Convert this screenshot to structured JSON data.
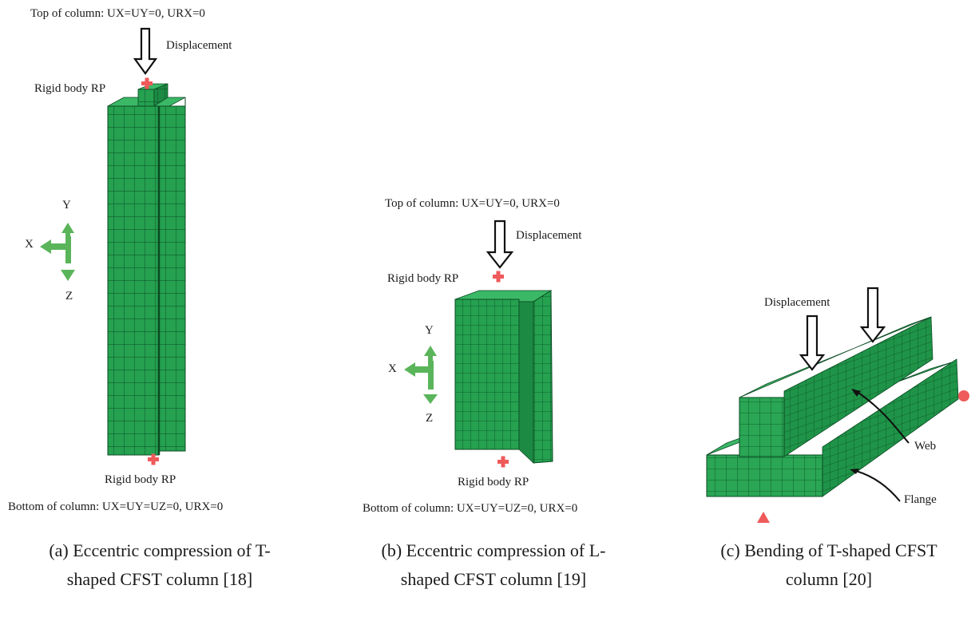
{
  "panel_a": {
    "top_bc": "Top of column: UX=UY=0, URX=0",
    "displacement": "Displacement",
    "rp_top": "Rigid body RP",
    "rp_bottom": "Rigid body RP",
    "bottom_bc": "Bottom of column: UX=UY=UZ=0, URX=0",
    "axes": {
      "x": "X",
      "y": "Y",
      "z": "Z"
    },
    "caption_line1": "(a) Eccentric compression of T-",
    "caption_line2": "shaped CFST column [18]"
  },
  "panel_b": {
    "top_bc": "Top of column: UX=UY=0, URX=0",
    "displacement": "Displacement",
    "rp_top": "Rigid body RP",
    "rp_bottom": "Rigid body RP",
    "bottom_bc": "Bottom of column: UX=UY=UZ=0, URX=0",
    "axes": {
      "x": "X",
      "y": "Y",
      "z": "Z"
    },
    "caption_line1": "(b) Eccentric compression of L-",
    "caption_line2": "shaped CFST column [19]"
  },
  "panel_c": {
    "displacement": "Displacement",
    "web": "Web",
    "flange": "Flange",
    "caption_line1": "(c) Bending of T-shaped CFST",
    "caption_line2": "column [20]"
  },
  "colors": {
    "mesh_front": "#25a150",
    "mesh_side": "#1c8a43",
    "mesh_top": "#3bb866",
    "mesh_line": "#0a4a22",
    "axis_arrow": "#5ab55a",
    "rp_marker": "#ef5a5a"
  }
}
